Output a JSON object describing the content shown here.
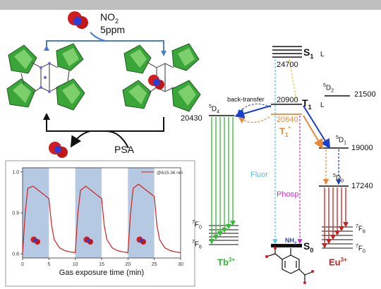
{
  "colors": {
    "tb": "#33bb33",
    "eu": "#cc1f1f",
    "t1_orange": "#e8893a",
    "fluor_cyan": "#4cc8d8",
    "phosp_magenta": "#cc33cc",
    "blue": "#1a3fd0",
    "band": "#b6c9e2",
    "curve": "#d02020",
    "cluster_green": "#3aa63a"
  },
  "scheme": {
    "gas_label": "NO",
    "gas_sub": "2",
    "concentration": "5ppm",
    "psa_label": "PSA"
  },
  "inset": {
    "legend": "@615.36 nm",
    "xlabel": "Gas exposure time (min)",
    "xticks": [
      "0",
      "5",
      "10",
      "15",
      "20",
      "25",
      "30"
    ],
    "yticks": [
      "1.0",
      "0.9",
      "0.8"
    ]
  },
  "chart_data": {
    "type": "line",
    "xlabel": "Gas exposure time (min)",
    "xlim": [
      0,
      30
    ],
    "ylim": [
      0.79,
      1.01
    ],
    "series": [
      {
        "name": "@615.36 nm",
        "x": [
          0,
          0.5,
          1,
          2,
          3,
          4,
          5,
          5.5,
          6,
          7,
          8,
          9,
          10,
          10.5,
          11,
          12,
          13,
          14,
          15,
          15.5,
          16,
          17,
          18,
          19,
          20,
          20.5,
          21,
          22,
          23,
          24,
          25,
          25.5,
          26,
          27,
          28,
          29,
          30
        ],
        "y": [
          0.8,
          0.9,
          0.96,
          0.965,
          0.955,
          0.945,
          0.935,
          0.87,
          0.835,
          0.815,
          0.808,
          0.805,
          0.803,
          0.9,
          0.955,
          0.965,
          0.955,
          0.945,
          0.935,
          0.87,
          0.835,
          0.815,
          0.808,
          0.805,
          0.803,
          0.9,
          0.96,
          0.97,
          0.96,
          0.95,
          0.94,
          0.87,
          0.835,
          0.815,
          0.808,
          0.805,
          0.803
        ]
      }
    ],
    "shaded_ranges": [
      [
        0,
        5
      ],
      [
        10,
        15
      ],
      [
        20,
        25
      ]
    ]
  },
  "energy": {
    "s1": "S",
    "s1_sub": "1",
    "l1": "L",
    "s1_energy": "24700",
    "t1": "T",
    "t1_sub": "1",
    "l2": "L",
    "t1_energy": "20900",
    "t1_prime": "T",
    "t1_prime_sub": "1",
    "t1_prime_energy": "20640",
    "back_transfer": "back-transfer",
    "fluor": "Fluor",
    "phosp": "Phosp",
    "s0": "S",
    "s0_sub": "0",
    "tb_5d4_sup": "5",
    "tb_5d4": "D",
    "tb_5d4_sub": "4",
    "tb_energy": "20430",
    "tb_7f0_sup": "7",
    "tb_7f0": "F",
    "tb_7f0_sub": "0",
    "tb_7f6_sup": "7",
    "tb_7f6": "F",
    "tb_7f6_sub": "6",
    "tb_ion": "Tb",
    "tb_charge": "3+",
    "eu_5d2_sup": "5",
    "eu_5d2": "D",
    "eu_5d2_sub": "2",
    "eu_5d2_energy": "21500",
    "eu_5d1_sup": "5",
    "eu_5d1": "D",
    "eu_5d1_sub": "1",
    "eu_5d1_energy": "19000",
    "eu_5d0_sup": "5",
    "eu_5d0": "D",
    "eu_5d0_sub": "0",
    "eu_5d0_energy": "17240",
    "eu_7f6_sup": "7",
    "eu_7f6": "F",
    "eu_7f6_sub": "6",
    "eu_7f0_sup": "7",
    "eu_7f0": "F",
    "eu_7f0_sub": "0",
    "eu_ion": "Eu",
    "eu_charge": "3+",
    "nh2": "NH",
    "nh2_sub": "2"
  }
}
